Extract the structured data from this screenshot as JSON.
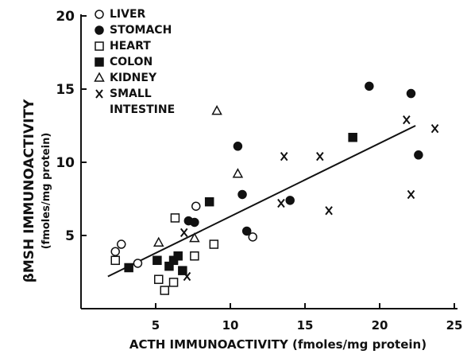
{
  "chart_data": {
    "type": "scatter",
    "xlabel": "ACTH IMMUNOACTIVITY (fmoles/mg protein)",
    "ylabel": [
      "βMSH IMMUNOACTIVITY",
      "(fmoles/mg protein)"
    ],
    "xlim": [
      0,
      25
    ],
    "ylim": [
      0,
      20
    ],
    "xticks": [
      5,
      10,
      15,
      20,
      25
    ],
    "yticks": [
      5,
      10,
      15,
      20
    ],
    "color": "#111111",
    "series": [
      {
        "name": "LIVER",
        "marker": "circle",
        "filled": false,
        "x": [
          2.3,
          2.7,
          3.8,
          7.7,
          11.5
        ],
        "values": [
          3.9,
          4.4,
          3.1,
          7.0,
          4.9
        ]
      },
      {
        "name": "STOMACH",
        "marker": "circle",
        "filled": true,
        "x": [
          19.3,
          22.1,
          10.5,
          10.8,
          7.2,
          7.6,
          11.1,
          14.0,
          22.6
        ],
        "values": [
          15.2,
          14.7,
          11.1,
          7.8,
          6.0,
          5.9,
          5.3,
          7.4,
          10.5
        ]
      },
      {
        "name": "HEART",
        "marker": "square",
        "filled": false,
        "x": [
          2.3,
          6.3,
          5.2,
          5.6,
          6.2,
          7.6,
          8.9
        ],
        "values": [
          3.3,
          6.2,
          2.0,
          1.25,
          1.8,
          3.6,
          4.4
        ]
      },
      {
        "name": "COLON",
        "marker": "square",
        "filled": true,
        "x": [
          3.2,
          5.1,
          5.9,
          6.2,
          6.5,
          6.8,
          8.6,
          18.2
        ],
        "values": [
          2.8,
          3.3,
          2.9,
          3.3,
          3.6,
          2.6,
          7.3,
          11.7
        ]
      },
      {
        "name": "KIDNEY",
        "marker": "triangle",
        "filled": false,
        "x": [
          9.1,
          10.5,
          5.2,
          7.6
        ],
        "values": [
          13.5,
          9.2,
          4.5,
          4.8
        ]
      },
      {
        "name": "SMALL INTESTINE",
        "marker": "x",
        "filled": false,
        "x": [
          6.9,
          7.1,
          13.6,
          13.4,
          16.0,
          16.6,
          21.8,
          22.1,
          23.7
        ],
        "values": [
          5.2,
          2.2,
          10.4,
          7.2,
          10.4,
          6.7,
          12.9,
          7.8,
          12.3
        ]
      }
    ],
    "fit_line": {
      "x": [
        1.8,
        22.4
      ],
      "values": [
        2.2,
        12.5
      ]
    }
  }
}
